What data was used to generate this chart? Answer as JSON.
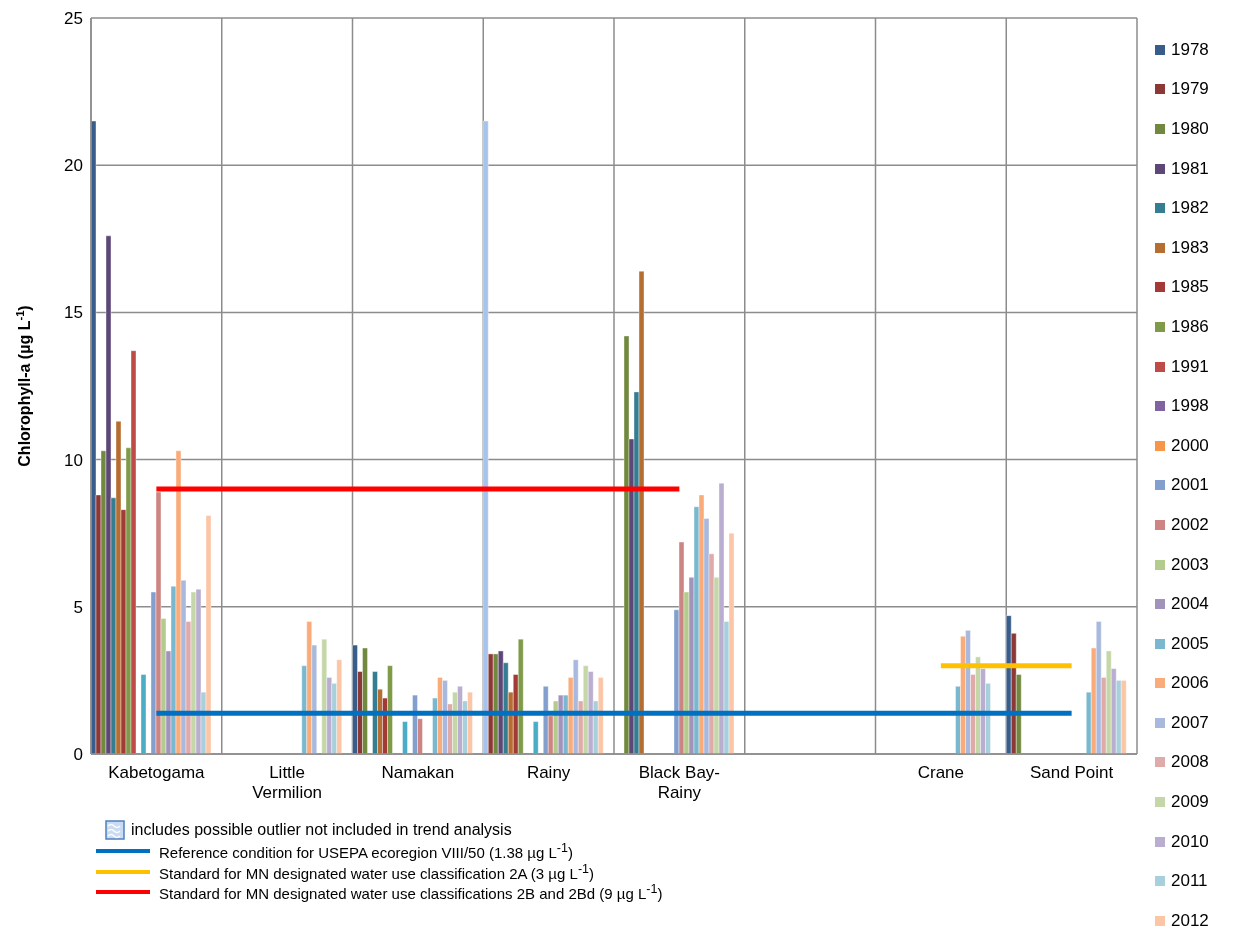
{
  "chart_data": {
    "type": "bar",
    "ylabel": "Chlorophyll-a (µg L$^{-1}$)",
    "categories": [
      "Kabetogama",
      "Little Vermilion",
      "Namakan",
      "Rainy",
      "Black Bay-Rainy",
      null,
      "Crane",
      "Sand Point"
    ],
    "ylim": [
      0,
      25
    ],
    "yticks": [
      0,
      5,
      10,
      15,
      20,
      25
    ],
    "grid": true,
    "legend": "right",
    "annotations": [
      "includes possible outlier not included in trend analysis"
    ],
    "series": [
      {
        "name": "1978",
        "color": "#385d8a",
        "colors": [
          "#385d8a",
          "#385d8a",
          "#385d8a",
          "#a6c3ee",
          "#385d8a",
          "#385d8a",
          "#385d8a",
          "#385d8a"
        ],
        "values": [
          21.5,
          null,
          3.7,
          21.5,
          null,
          null,
          null,
          4.7
        ]
      },
      {
        "name": "1979",
        "color": "#8c3836",
        "values": [
          8.8,
          null,
          2.8,
          3.4,
          null,
          null,
          null,
          4.1
        ]
      },
      {
        "name": "1980",
        "color": "#71893f",
        "values": [
          10.3,
          null,
          3.6,
          3.4,
          14.2,
          null,
          null,
          2.7
        ]
      },
      {
        "name": "1981",
        "color": "#5c4776",
        "values": [
          17.6,
          null,
          null,
          3.5,
          10.7,
          null,
          null,
          null
        ]
      },
      {
        "name": "1982",
        "color": "#357d91",
        "values": [
          8.7,
          null,
          2.8,
          3.1,
          12.3,
          null,
          null,
          null
        ]
      },
      {
        "name": "1983",
        "color": "#b66d31",
        "values": [
          11.3,
          null,
          2.2,
          2.1,
          16.4,
          null,
          null,
          null
        ]
      },
      {
        "name": "1985",
        "color": "#a33a36",
        "values": [
          8.3,
          null,
          1.9,
          2.7,
          null,
          null,
          null,
          null
        ]
      },
      {
        "name": "1986",
        "color": "#7f9a48",
        "values": [
          10.4,
          null,
          3.0,
          3.9,
          null,
          null,
          null,
          null
        ]
      },
      {
        "name": "1991",
        "color": "#be4b48",
        "values": [
          13.7,
          null,
          null,
          null,
          null,
          null,
          null,
          null
        ]
      },
      {
        "name": "1998",
        "color": "#8064a2",
        "values": [
          null,
          null,
          null,
          null,
          null,
          null,
          null,
          null
        ]
      },
      {
        "color": "#4bacc6",
        "values": [
          2.7,
          null,
          1.1,
          1.1,
          null,
          null,
          null,
          null
        ]
      },
      {
        "name": "2000",
        "color": "#f79646",
        "values": [
          null,
          null,
          null,
          null,
          null,
          null,
          null,
          null
        ]
      },
      {
        "name": "2001",
        "color": "#829fce",
        "values": [
          5.5,
          null,
          2.0,
          2.3,
          4.9,
          null,
          null,
          null
        ]
      },
      {
        "name": "2002",
        "color": "#cd8583",
        "values": [
          8.9,
          null,
          1.2,
          1.3,
          7.2,
          null,
          null,
          null
        ]
      },
      {
        "name": "2003",
        "color": "#b3cb8c",
        "values": [
          4.6,
          null,
          null,
          1.8,
          5.5,
          null,
          null,
          null
        ]
      },
      {
        "name": "2004",
        "color": "#a293bd",
        "values": [
          3.5,
          null,
          null,
          2.0,
          6.0,
          null,
          null,
          null
        ]
      },
      {
        "name": "2005",
        "color": "#7ab8cf",
        "values": [
          5.7,
          3.0,
          1.9,
          2.0,
          8.4,
          null,
          2.3,
          2.1
        ]
      },
      {
        "name": "2006",
        "color": "#f9ac7a",
        "values": [
          10.3,
          4.5,
          2.6,
          2.6,
          8.8,
          null,
          4.0,
          3.6
        ]
      },
      {
        "name": "2007",
        "color": "#a9b9dd",
        "values": [
          5.9,
          3.7,
          2.5,
          3.2,
          8.0,
          null,
          4.2,
          4.5
        ]
      },
      {
        "name": "2008",
        "color": "#dfabaa",
        "values": [
          4.5,
          null,
          1.7,
          1.8,
          6.8,
          null,
          2.7,
          2.6
        ]
      },
      {
        "name": "2009",
        "color": "#c5d7a8",
        "values": [
          5.5,
          3.9,
          2.1,
          3.0,
          6.0,
          null,
          3.3,
          3.5
        ]
      },
      {
        "name": "2010",
        "color": "#b9aed0",
        "values": [
          5.6,
          2.6,
          2.3,
          2.8,
          9.2,
          null,
          2.9,
          2.9
        ]
      },
      {
        "name": "2011",
        "color": "#a7cfdc",
        "values": [
          2.1,
          2.4,
          1.8,
          1.8,
          4.5,
          null,
          2.4,
          2.5
        ]
      },
      {
        "name": "2012",
        "color": "#fbc5a6",
        "values": [
          8.1,
          3.2,
          2.1,
          2.6,
          7.5,
          null,
          null,
          2.5
        ]
      },
      {
        "type": "line",
        "name": "Reference condition for USEPA ecoregion VIII/50 (1.38 µg L$^{-1}$)",
        "color": "#0070c0",
        "values": [
          1.38,
          1.38,
          1.38,
          1.38,
          1.38,
          1.38,
          1.38,
          1.38
        ]
      },
      {
        "type": "line",
        "name": "Standard for MN designated water use classification 2A (3 µg L$^{-1}$)",
        "color": "#ffc000",
        "values": [
          null,
          null,
          null,
          null,
          null,
          null,
          3,
          3
        ]
      },
      {
        "type": "line",
        "name": "Standard for MN designated water use classifications 2B and 2Bd (9 µg L$^{-1}$)",
        "color": "#ff0000",
        "values": [
          9,
          9,
          9,
          9,
          9,
          null,
          null,
          null
        ]
      }
    ]
  }
}
